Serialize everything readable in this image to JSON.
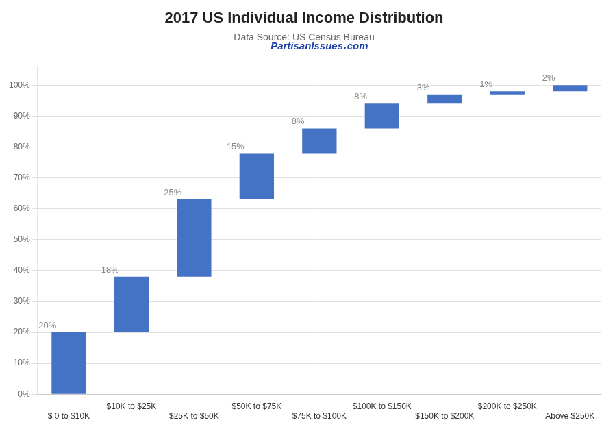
{
  "chart_data": {
    "type": "waterfall",
    "title": "2017 US Individual Income Distribution",
    "subtitle": "Data Source: US Census Bureau",
    "annotations": [
      "PartisanIssues․com"
    ],
    "categories": [
      "$ 0 to $10K",
      "$10K to $25K",
      "$25K to $50K",
      "$50K to $75K",
      "$75K to $100K",
      "$100K to $150K",
      "$150K to $200K",
      "$200K to $250K",
      "Above $250K"
    ],
    "values": [
      20,
      18,
      25,
      15,
      8,
      8,
      3,
      1,
      2
    ],
    "value_labels": [
      "20%",
      "18%",
      "25%",
      "15%",
      "8%",
      "8%",
      "3%",
      "1%",
      "2%"
    ],
    "data_labels": true,
    "color": "#4472C4",
    "ylim": [
      0,
      106
    ],
    "yticks": [
      {
        "value": 0,
        "label": "0%"
      },
      {
        "value": 10,
        "label": "10%"
      },
      {
        "value": 20,
        "label": "20%"
      },
      {
        "value": 30,
        "label": "30%"
      },
      {
        "value": 40,
        "label": "40%"
      },
      {
        "value": 50,
        "label": "50%"
      },
      {
        "value": 60,
        "label": "60%"
      },
      {
        "value": 70,
        "label": "70%"
      },
      {
        "value": 80,
        "label": "80%"
      },
      {
        "value": 90,
        "label": "90%"
      },
      {
        "value": 100,
        "label": "100%"
      }
    ],
    "grid": true
  }
}
